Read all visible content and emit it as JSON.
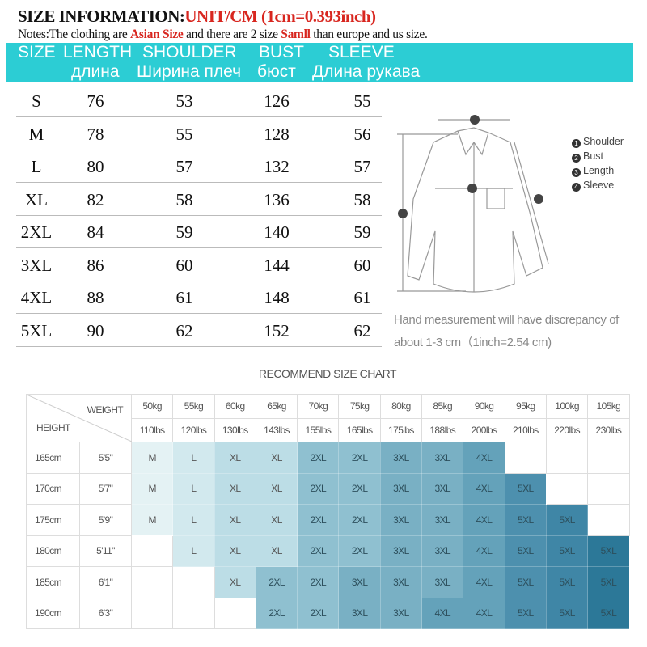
{
  "title": {
    "prefix": "SIZE INFORMATION:",
    "unit": "UNIT/CM  (1cm=0.393inch)"
  },
  "notes": {
    "a": "Notes:The clothing are ",
    "b": "Asian Size",
    "c": " and there are 2 size ",
    "d": "Samll",
    "e": " than europe and us size."
  },
  "header": {
    "size": "SIZE",
    "length": "LENGTH",
    "shoulder": "SHOULDER",
    "bust": "BUST",
    "sleeve": "SLEEVE",
    "length_ru": "длина",
    "shoulder_ru": "Ширина плеч",
    "bust_ru": "бюст",
    "sleeve_ru": "Длина рукава"
  },
  "sizes": [
    [
      "S",
      "76",
      "53",
      "126",
      "55"
    ],
    [
      "M",
      "78",
      "55",
      "128",
      "56"
    ],
    [
      "L",
      "80",
      "57",
      "132",
      "57"
    ],
    [
      "XL",
      "82",
      "58",
      "136",
      "58"
    ],
    [
      "2XL",
      "84",
      "59",
      "140",
      "59"
    ],
    [
      "3XL",
      "86",
      "60",
      "144",
      "60"
    ],
    [
      "4XL",
      "88",
      "61",
      "148",
      "61"
    ],
    [
      "5XL",
      "90",
      "62",
      "152",
      "62"
    ]
  ],
  "legend": [
    "Shoulder",
    "Bust",
    "Length",
    "Sleeve"
  ],
  "hand_note": [
    "Hand measurement will have discrepancy of",
    "about 1-3 cm（1inch=2.54 cm)"
  ],
  "recommend": {
    "title": "RECOMMEND SIZE CHART",
    "weight_label": "WEIGHT",
    "height_label": "HEIGHT",
    "kg": [
      "50kg",
      "55kg",
      "60kg",
      "65kg",
      "70kg",
      "75kg",
      "80kg",
      "85kg",
      "90kg",
      "95kg",
      "100kg",
      "105kg"
    ],
    "lbs": [
      "110lbs",
      "120lbs",
      "130lbs",
      "143lbs",
      "155lbs",
      "165lbs",
      "175lbs",
      "188lbs",
      "200lbs",
      "210lbs",
      "220lbs",
      "230lbs"
    ],
    "rows": [
      {
        "cm": "165cm",
        "ft": "5'5\"",
        "cells": [
          "M",
          "L",
          "XL",
          "XL",
          "2XL",
          "2XL",
          "3XL",
          "3XL",
          "4XL",
          "",
          "",
          ""
        ]
      },
      {
        "cm": "170cm",
        "ft": "5'7\"",
        "cells": [
          "M",
          "L",
          "XL",
          "XL",
          "2XL",
          "2XL",
          "3XL",
          "3XL",
          "4XL",
          "5XL",
          "",
          ""
        ]
      },
      {
        "cm": "175cm",
        "ft": "5'9\"",
        "cells": [
          "M",
          "L",
          "XL",
          "XL",
          "2XL",
          "2XL",
          "3XL",
          "3XL",
          "4XL",
          "5XL",
          "5XL",
          ""
        ]
      },
      {
        "cm": "180cm",
        "ft": "5'11\"",
        "cells": [
          "",
          "L",
          "XL",
          "XL",
          "2XL",
          "2XL",
          "3XL",
          "3XL",
          "4XL",
          "5XL",
          "5XL",
          "5XL"
        ]
      },
      {
        "cm": "185cm",
        "ft": "6'1\"",
        "cells": [
          "",
          "",
          "XL",
          "2XL",
          "2XL",
          "3XL",
          "3XL",
          "3XL",
          "4XL",
          "5XL",
          "5XL",
          "5XL"
        ]
      },
      {
        "cm": "190cm",
        "ft": "6'3\"",
        "cells": [
          "",
          "",
          "",
          "2XL",
          "2XL",
          "3XL",
          "3XL",
          "4XL",
          "4XL",
          "5XL",
          "5XL",
          "5XL"
        ]
      }
    ],
    "colors": {
      "M": "#e4f2f4",
      "L": "#d2e9ee",
      "XL": "#bcdde6",
      "2XL": "#8fc0d0",
      "3XL": "#79b0c4",
      "4XL": "#64a2ba",
      "5XL": "#4d90ae"
    }
  },
  "accent": "#2ccdd4"
}
